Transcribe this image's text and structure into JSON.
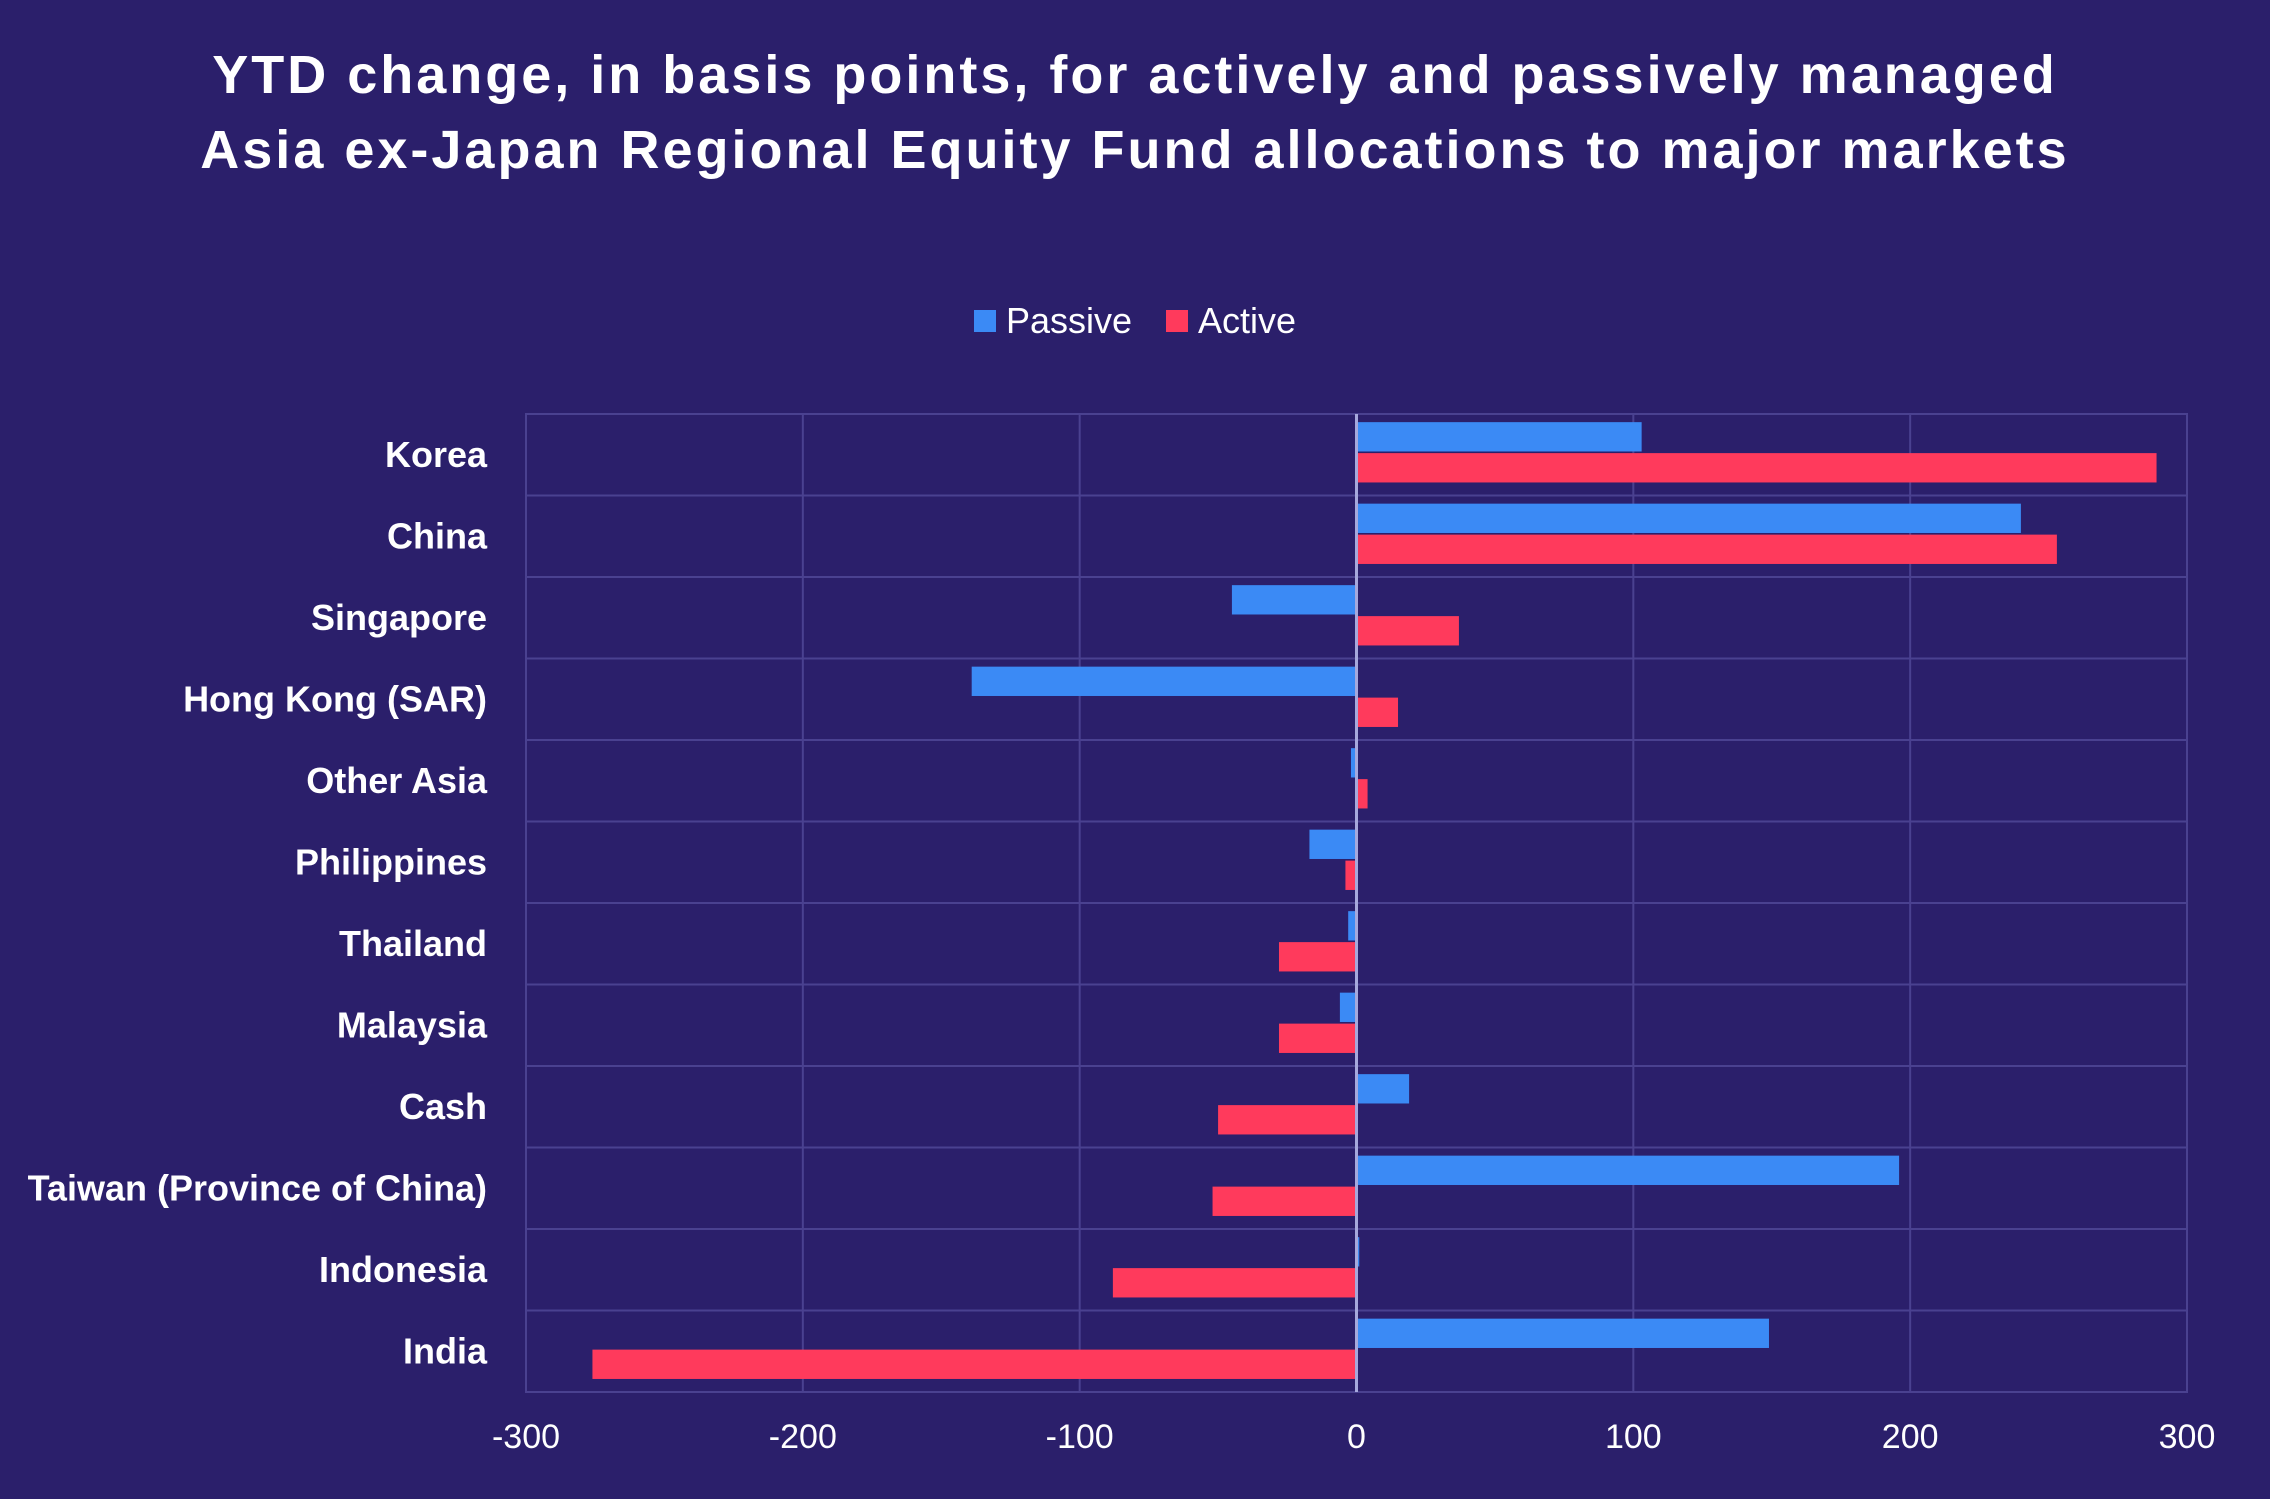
{
  "chart_data": {
    "type": "bar",
    "orientation": "horizontal",
    "title": "YTD change, in basis points, for actively and passively managed Asia ex-Japan Regional Equity Fund allocations to major markets",
    "categories": [
      "Korea",
      "China",
      "Singapore",
      "Hong Kong (SAR)",
      "Other Asia",
      "Philippines",
      "Thailand",
      "Malaysia",
      "Cash",
      "Taiwan (Province of China)",
      "Indonesia",
      "India"
    ],
    "series": [
      {
        "name": "Passive",
        "color": "#3b8af5",
        "values": [
          103,
          240,
          -45,
          -139,
          -2,
          -17,
          -3,
          -6,
          19,
          196,
          1,
          149
        ]
      },
      {
        "name": "Active",
        "color": "#ff3a5c",
        "values": [
          289,
          253,
          37,
          15,
          4,
          -4,
          -28,
          -28,
          -50,
          -52,
          -88,
          -276
        ]
      }
    ],
    "xlim": [
      -300,
      300
    ],
    "xticks": [
      "-300",
      "-200",
      "-100",
      "0",
      "100",
      "200",
      "300"
    ],
    "grid": true,
    "legend_position": "top-center",
    "colors": {
      "background": "#2b1f6b",
      "grid": "#4a4190",
      "zero_line": "#a6a8dc"
    }
  }
}
